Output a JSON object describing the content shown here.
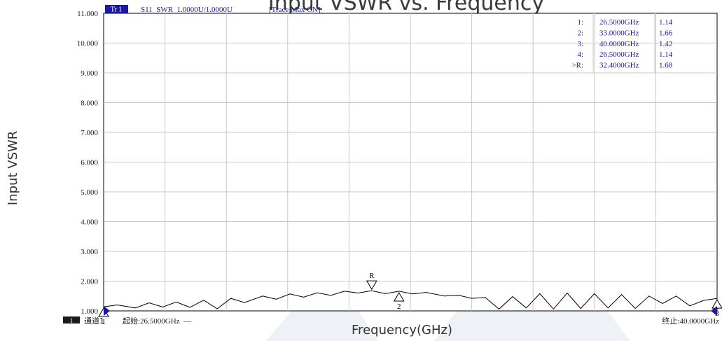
{
  "chart_data": {
    "type": "line",
    "title": "Input VSWR vs. Frequency",
    "ylabel": "Input VSWR",
    "xlabel": "Frequency(GHz)",
    "header": {
      "trace_badge": "Tr 1",
      "trace_info": "S11  SWR  1.0000U/1.0000U",
      "trace_max": "[Trace Max ON]"
    },
    "ylim": [
      1,
      11
    ],
    "xlim": [
      26.5,
      40.0
    ],
    "y_ticks": [
      "1.000",
      "2.000",
      "3.000",
      "4.000",
      "5.000",
      "6.000",
      "7.000",
      "8.000",
      "9.000",
      "10.000",
      "11.000"
    ],
    "grid": true,
    "footer": {
      "channel_badge": "1",
      "channel_label": "通道1",
      "start_label": "起始:26.5000GHz  —",
      "stop_label": "终止:40.0000GHz"
    },
    "marker_table": [
      {
        "id": "1:",
        "freq": "26.5000GHz",
        "value": "1.14"
      },
      {
        "id": "2:",
        "freq": "33.0000GHz",
        "value": "1.66"
      },
      {
        "id": "3:",
        "freq": "40.0000GHz",
        "value": "1.42"
      },
      {
        "id": "4:",
        "freq": "26.5000GHz",
        "value": "1.14"
      },
      {
        "id": ">R:",
        "freq": "32.4000GHz",
        "value": "1.68"
      }
    ],
    "markers": [
      {
        "label": "R",
        "freq": 32.4,
        "value": 1.68,
        "dir": "down"
      },
      {
        "label": "2",
        "freq": 33.0,
        "value": 1.66,
        "dir": "up"
      },
      {
        "label": "3",
        "freq": 40.0,
        "value": 1.42,
        "dir": "up"
      },
      {
        "label": "1",
        "freq": 26.5,
        "value": 1.14,
        "dir": "up"
      }
    ],
    "series": [
      {
        "color": "#000000",
        "x": [
          26.5,
          26.8,
          27.2,
          27.5,
          27.8,
          28.1,
          28.4,
          28.7,
          29.0,
          29.3,
          29.6,
          30.0,
          30.3,
          30.6,
          30.9,
          31.2,
          31.5,
          31.8,
          32.1,
          32.4,
          32.7,
          33.0,
          33.3,
          33.6,
          34.0,
          34.3,
          34.6,
          34.9,
          35.2,
          35.5,
          35.8,
          36.1,
          36.4,
          36.7,
          37.0,
          37.3,
          37.6,
          37.9,
          38.2,
          38.5,
          38.8,
          39.1,
          39.4,
          39.7,
          40.0
        ],
        "y": [
          1.14,
          1.2,
          1.1,
          1.27,
          1.13,
          1.3,
          1.12,
          1.36,
          1.07,
          1.42,
          1.28,
          1.5,
          1.39,
          1.57,
          1.46,
          1.61,
          1.52,
          1.66,
          1.6,
          1.68,
          1.58,
          1.66,
          1.57,
          1.62,
          1.5,
          1.53,
          1.42,
          1.45,
          1.06,
          1.48,
          1.1,
          1.58,
          1.06,
          1.6,
          1.08,
          1.58,
          1.1,
          1.55,
          1.08,
          1.5,
          1.25,
          1.5,
          1.17,
          1.35,
          1.42
        ]
      }
    ]
  }
}
